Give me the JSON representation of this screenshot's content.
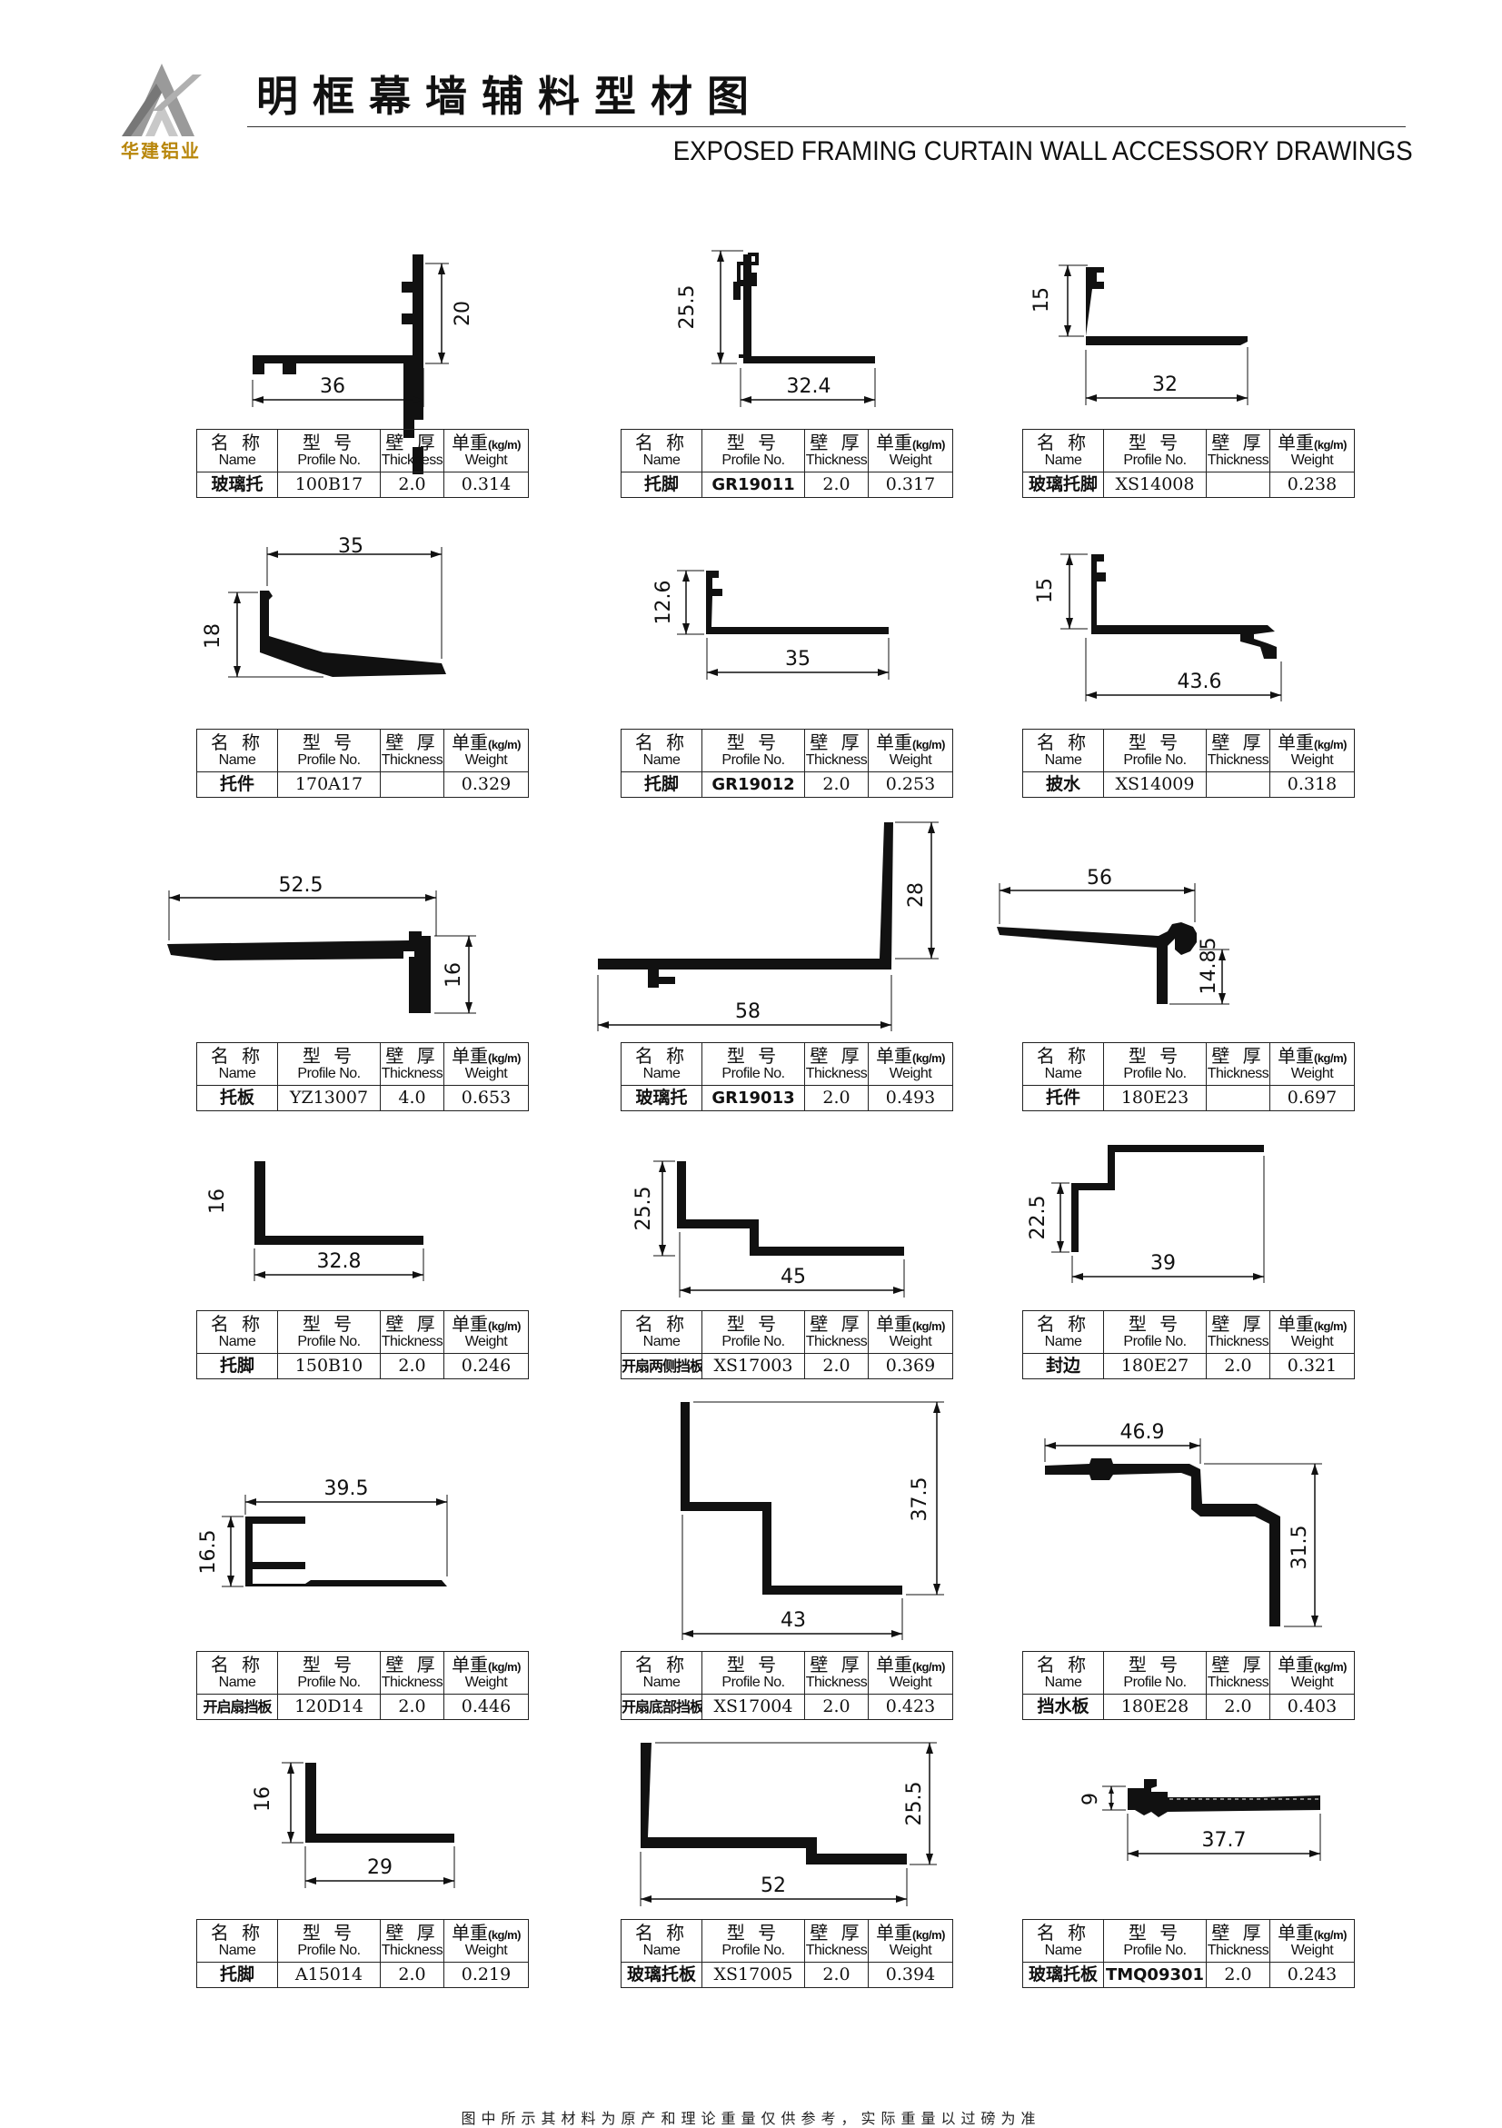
{
  "header": {
    "logo_text": "华建铝业",
    "title_cn": "明框幕墙辅料型材图",
    "title_en": "EXPOSED FRAMING CURTAIN WALL ACCESSORY DRAWINGS"
  },
  "table_headers": {
    "name_cn": "名 称",
    "name_en": "Name",
    "profile_cn": "型 号",
    "profile_en": "Profile No.",
    "thickness_cn": "壁 厚",
    "thickness_en": "Thickness",
    "weight_cn": "单重",
    "weight_unit": "(kg/m)",
    "weight_en": "Weight"
  },
  "colors": {
    "ink": "#111111",
    "logo_gold": "#b8860b"
  },
  "cards": [
    {
      "name": "玻璃托",
      "profile": "100B17",
      "thickness": "2.0",
      "weight": "0.314",
      "dims": [
        "36",
        "20"
      ]
    },
    {
      "name": "托脚",
      "profile": "GR19011",
      "thickness": "2.0",
      "weight": "0.317",
      "dims": [
        "25.5",
        "32.4"
      ]
    },
    {
      "name": "玻璃托脚",
      "profile": "XS14008",
      "thickness": "",
      "weight": "0.238",
      "dims": [
        "15",
        "32"
      ]
    },
    {
      "name": "托件",
      "profile": "170A17",
      "thickness": "",
      "weight": "0.329",
      "dims": [
        "35",
        "18"
      ]
    },
    {
      "name": "托脚",
      "profile": "GR19012",
      "thickness": "2.0",
      "weight": "0.253",
      "dims": [
        "12.6",
        "35"
      ]
    },
    {
      "name": "披水",
      "profile": "XS14009",
      "thickness": "",
      "weight": "0.318",
      "dims": [
        "15",
        "43.6"
      ]
    },
    {
      "name": "托板",
      "profile": "YZ13007",
      "thickness": "4.0",
      "weight": "0.653",
      "dims": [
        "52.5",
        "16"
      ]
    },
    {
      "name": "玻璃托",
      "profile": "GR19013",
      "thickness": "2.0",
      "weight": "0.493",
      "dims": [
        "28",
        "58"
      ]
    },
    {
      "name": "托件",
      "profile": "180E23",
      "thickness": "",
      "weight": "0.697",
      "dims": [
        "56",
        "14.85"
      ]
    },
    {
      "name": "托脚",
      "profile": "150B10",
      "thickness": "2.0",
      "weight": "0.246",
      "dims": [
        "16",
        "32.8"
      ]
    },
    {
      "name": "开扇两侧挡板",
      "profile": "XS17003",
      "thickness": "2.0",
      "weight": "0.369",
      "dims": [
        "25.5",
        "45"
      ]
    },
    {
      "name": "封边",
      "profile": "180E27",
      "thickness": "2.0",
      "weight": "0.321",
      "dims": [
        "22.5",
        "39"
      ]
    },
    {
      "name": "开启扇挡板",
      "profile": "120D14",
      "thickness": "2.0",
      "weight": "0.446",
      "dims": [
        "39.5",
        "16.5"
      ]
    },
    {
      "name": "开扇底部挡板",
      "profile": "XS17004",
      "thickness": "2.0",
      "weight": "0.423",
      "dims": [
        "37.5",
        "43"
      ]
    },
    {
      "name": "挡水板",
      "profile": "180E28",
      "thickness": "2.0",
      "weight": "0.403",
      "dims": [
        "46.9",
        "31.5"
      ]
    },
    {
      "name": "托脚",
      "profile": "A15014",
      "thickness": "2.0",
      "weight": "0.219",
      "dims": [
        "16",
        "29"
      ]
    },
    {
      "name": "玻璃托板",
      "profile": "XS17005",
      "thickness": "2.0",
      "weight": "0.394",
      "dims": [
        "25.5",
        "52"
      ]
    },
    {
      "name": "玻璃托板",
      "profile": "TMQ09301",
      "thickness": "2.0",
      "weight": "0.243",
      "dims": [
        "9",
        "37.7"
      ]
    }
  ],
  "footnote": "图中所示其材料为原产和理论重量仅供参考，实际重量以过磅为准"
}
